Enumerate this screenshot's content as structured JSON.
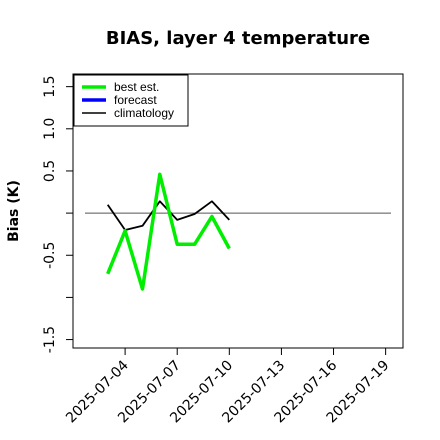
{
  "chart_data": {
    "type": "line",
    "title": "BIAS, layer 4 temperature",
    "ylabel": "Bias (K)",
    "xlabel": "",
    "ylim": [
      -1.6,
      1.65
    ],
    "xlim": [
      "2025-07-01",
      "2025-07-20"
    ],
    "yticks": [
      -1.5,
      -1.0,
      -0.5,
      0.0,
      0.5,
      1.0,
      1.5
    ],
    "ytick_labels": [
      "-1.5",
      "",
      "-0.5",
      "",
      "0.5",
      "1.0",
      "1.5"
    ],
    "xticks": [
      "2025-07-04",
      "2025-07-07",
      "2025-07-10",
      "2025-07-13",
      "2025-07-16",
      "2025-07-19"
    ],
    "highlight_tick": "2025-07-10",
    "highlight_color": "#228b22",
    "reference_line": 0.0,
    "legend_position": "top-left",
    "grid": false,
    "series": [
      {
        "name": "best est.",
        "color": "#00ee00",
        "x": [
          "2025-07-03",
          "2025-07-04",
          "2025-07-05",
          "2025-07-06",
          "2025-07-07",
          "2025-07-08",
          "2025-07-09",
          "2025-07-10"
        ],
        "values": [
          -0.72,
          -0.21,
          -0.9,
          0.46,
          -0.37,
          -0.37,
          -0.04,
          -0.42
        ]
      },
      {
        "name": "forecast",
        "color": "#0000ff",
        "x": [],
        "values": []
      },
      {
        "name": "climatology",
        "color": "#000000",
        "x": [
          "2025-07-03",
          "2025-07-04",
          "2025-07-05",
          "2025-07-06",
          "2025-07-07",
          "2025-07-08",
          "2025-07-09",
          "2025-07-10"
        ],
        "values": [
          0.1,
          -0.2,
          -0.15,
          0.14,
          -0.08,
          -0.01,
          0.14,
          -0.08
        ]
      }
    ]
  }
}
